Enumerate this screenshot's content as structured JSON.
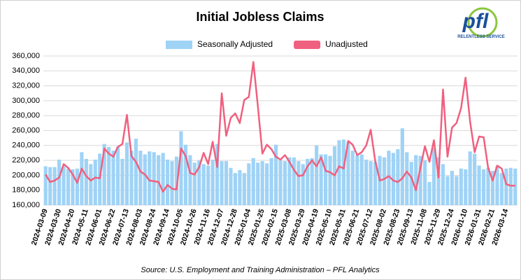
{
  "chart_data": {
    "type": "bar_line",
    "title": "Initial Jobless Claims",
    "source": "Source: U.S. Employment and Training Administration – PFL Analytics",
    "logo_text": "pfl",
    "logo_tagline": "RELENTLESS SERVICE",
    "categories": [
      "2024-03-09",
      null,
      null,
      "2024-03-30",
      null,
      null,
      "2024-04-20",
      null,
      null,
      "2024-05-11",
      null,
      null,
      "2024-06-01",
      null,
      null,
      "2024-06-22",
      null,
      null,
      "2024-07-13",
      null,
      null,
      "2024-08-03",
      null,
      null,
      "2024-08-24",
      null,
      null,
      "2024-09-14",
      null,
      null,
      "2024-10-05",
      null,
      null,
      "2024-10-26",
      null,
      null,
      "2024-11-16",
      null,
      null,
      "2024-12-07",
      null,
      null,
      "2024-12-28",
      null,
      null,
      "2025-01-04",
      null,
      null,
      "2025-01-25",
      null,
      null,
      "2025-02-15",
      null,
      null,
      "2025-03-08",
      null,
      null,
      "2025-03-29",
      null,
      null,
      "2025-04-19",
      null,
      null,
      "2025-05-10",
      null,
      null,
      "2025-05-31",
      null,
      null,
      "2025-06-21",
      null,
      null,
      "2025-07-12",
      null,
      null,
      "2025-08-02",
      null,
      null,
      "2025-08-23",
      null,
      null,
      "2025-09-13",
      null,
      null,
      "2025-11-08",
      null,
      null,
      "2025-11-29",
      null,
      null,
      "2025-12-24",
      null,
      null,
      "2026-01-10",
      null,
      null,
      "2026-01-31",
      null,
      null,
      "2026-02-21",
      null,
      null,
      "2026-03-14",
      null,
      null
    ],
    "series": [
      {
        "name": "Seasonally Adjusted",
        "kind": "bar",
        "color": "#9fd3f6",
        "values": [
          212000,
          211000,
          211000,
          221000,
          212000,
          209000,
          208000,
          209000,
          231000,
          222000,
          215000,
          221000,
          229000,
          242000,
          238000,
          233000,
          238000,
          222000,
          244000,
          233000,
          249000,
          233000,
          228000,
          232000,
          231000,
          227000,
          230000,
          221000,
          219000,
          225000,
          259000,
          241000,
          227000,
          217000,
          220000,
          215000,
          213000,
          221000,
          242000,
          219000,
          219000,
          210000,
          203000,
          207000,
          203000,
          216000,
          223000,
          217000,
          219000,
          216000,
          223000,
          241000,
          220000,
          219000,
          224000,
          224000,
          219000,
          215000,
          222000,
          223000,
          240000,
          228000,
          228000,
          226000,
          239000,
          247000,
          248000,
          245000,
          233000,
          227000,
          228000,
          221000,
          219000,
          218000,
          226000,
          224000,
          233000,
          230000,
          235000,
          263000,
          231000,
          218000,
          227000,
          226000,
          220000,
          191000,
          236000,
          224000,
          215000,
          199000,
          206000,
          199000,
          209000,
          208000,
          232000,
          229000,
          213000,
          208000,
          210000,
          206000,
          212000,
          203000,
          209000,
          210000,
          209000
        ]
      },
      {
        "name": "Unadjusted",
        "kind": "line",
        "color": "#f0607f",
        "values": [
          201000,
          191000,
          193000,
          197000,
          215000,
          210000,
          201000,
          190000,
          209000,
          199000,
          193000,
          197000,
          196000,
          236000,
          229000,
          225000,
          238000,
          242000,
          281000,
          226000,
          218000,
          205000,
          201000,
          193000,
          192000,
          191000,
          178000,
          187000,
          182000,
          181000,
          236000,
          226000,
          203000,
          201000,
          211000,
          230000,
          215000,
          245000,
          211000,
          310000,
          253000,
          277000,
          283000,
          270000,
          301000,
          305000,
          352000,
          293000,
          229000,
          241000,
          235000,
          225000,
          221000,
          227000,
          218000,
          207000,
          199000,
          200000,
          212000,
          220000,
          212000,
          224000,
          206000,
          204000,
          200000,
          212000,
          209000,
          246000,
          241000,
          227000,
          231000,
          240000,
          261000,
          219000,
          193000,
          195000,
          199000,
          193000,
          191000,
          196000,
          205000,
          197000,
          180000,
          210000,
          239000,
          218000,
          247000,
          197000,
          315000,
          225000,
          264000,
          270000,
          290000,
          331000,
          272000,
          231000,
          252000,
          251000,
          210000,
          193000,
          213000,
          209000,
          188000,
          186000,
          186000
        ]
      }
    ],
    "ylim": [
      160000,
      360000
    ],
    "yticks": [
      {
        "value": 160000,
        "label": "160,000"
      },
      {
        "value": 180000,
        "label": "180,000"
      },
      {
        "value": 200000,
        "label": "200,000"
      },
      {
        "value": 220000,
        "label": "220,000"
      },
      {
        "value": 240000,
        "label": "240,000"
      },
      {
        "value": 260000,
        "label": "260,000"
      },
      {
        "value": 280000,
        "label": "280,000"
      },
      {
        "value": 300000,
        "label": "300,000"
      },
      {
        "value": 320000,
        "label": "320,000"
      },
      {
        "value": 340000,
        "label": "340,000"
      },
      {
        "value": 360000,
        "label": "360,000"
      }
    ],
    "grid": true,
    "legend": "top"
  }
}
